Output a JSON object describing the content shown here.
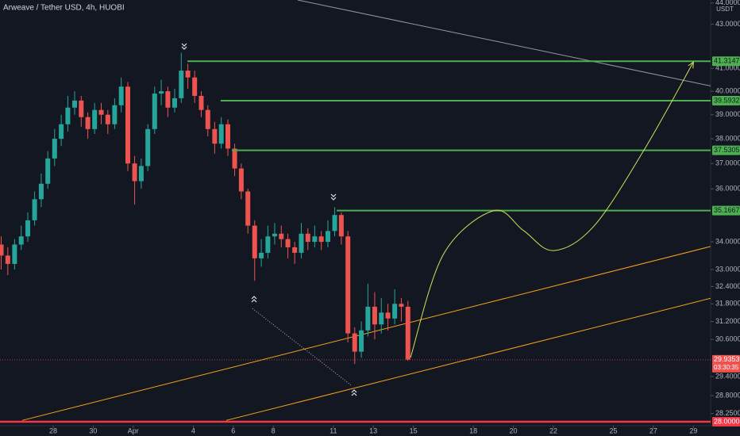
{
  "chart_data": {
    "type": "candlestick",
    "title": "Arweave / Tether USD, 4h, HUOBI",
    "y_axis_unit": "USDT",
    "log_scale": true,
    "grid": false,
    "colors": {
      "up": "#26a69a",
      "down": "#ef5350"
    },
    "x": [
      25.4,
      25.73,
      26.07,
      26.4,
      26.73,
      27.07,
      27.4,
      27.73,
      28.07,
      28.4,
      28.73,
      29.07,
      29.4,
      29.73,
      30.07,
      30.4,
      30.73,
      31.07,
      31.4,
      31.73,
      32.07,
      32.4,
      32.73,
      33.07,
      33.4,
      33.73,
      34.07,
      34.4,
      34.73,
      35.07,
      35.4,
      35.73,
      36.07,
      36.4,
      36.73,
      37.07,
      37.4,
      37.73,
      38.07,
      38.4,
      38.73,
      39.07,
      39.4,
      39.73,
      40.07,
      40.4,
      40.73,
      41.07,
      41.4,
      41.73,
      42.07,
      42.4,
      42.73,
      43.07,
      43.4,
      43.73,
      44.07,
      44.4,
      44.73,
      45.07,
      45.4,
      45.73
    ],
    "open": [
      33.9,
      33.5,
      33.2,
      33.9,
      34.2,
      34.8,
      35.6,
      36.2,
      37.2,
      38.0,
      38.6,
      39.3,
      39.6,
      38.9,
      38.4,
      39.2,
      39.0,
      38.6,
      39.4,
      40.2,
      37.0,
      36.3,
      36.9,
      38.4,
      39.9,
      40.0,
      39.3,
      39.7,
      40.9,
      40.6,
      39.8,
      39.2,
      38.4,
      37.8,
      38.6,
      37.6,
      36.8,
      35.9,
      34.6,
      33.4,
      33.6,
      34.2,
      34.3,
      34.1,
      33.8,
      33.6,
      34.3,
      34.0,
      34.2,
      34.0,
      34.4,
      35.0,
      34.2,
      30.8,
      30.2,
      30.9,
      31.7,
      31.1,
      31.5,
      31.3,
      31.8,
      31.7
    ],
    "high": [
      34.2,
      33.8,
      34.1,
      34.6,
      35.1,
      35.9,
      36.6,
      37.5,
      38.4,
      39.0,
      39.8,
      40.0,
      39.8,
      39.1,
      39.5,
      39.5,
      39.2,
      39.7,
      40.6,
      40.4,
      37.3,
      37.2,
      38.6,
      40.2,
      40.5,
      40.2,
      40.1,
      41.7,
      41.2,
      40.9,
      40.0,
      39.4,
      38.7,
      38.9,
      38.8,
      37.8,
      37.0,
      36.0,
      34.8,
      34.1,
      34.6,
      34.7,
      34.6,
      34.3,
      34.0,
      34.7,
      34.5,
      34.6,
      34.4,
      34.8,
      35.3,
      35.1,
      34.4,
      31.0,
      31.2,
      32.5,
      32.2,
      32.0,
      31.8,
      32.3,
      32.0,
      31.9
    ],
    "low": [
      33.0,
      32.8,
      33.0,
      33.7,
      34.0,
      34.6,
      35.3,
      36.0,
      36.9,
      37.7,
      38.3,
      39.0,
      38.5,
      38.0,
      38.2,
      38.6,
      38.2,
      38.4,
      39.1,
      36.7,
      35.4,
      36.0,
      36.7,
      38.2,
      39.4,
      38.9,
      39.1,
      39.5,
      40.1,
      39.5,
      38.9,
      38.1,
      37.4,
      37.6,
      37.3,
      36.5,
      35.6,
      34.3,
      32.6,
      33.1,
      33.4,
      33.9,
      33.8,
      33.4,
      33.2,
      33.4,
      33.7,
      33.8,
      33.7,
      33.8,
      34.2,
      33.9,
      30.5,
      29.8,
      30.0,
      30.7,
      30.6,
      30.8,
      30.9,
      31.1,
      31.2,
      29.9
    ],
    "close": [
      33.5,
      33.2,
      33.9,
      34.2,
      34.8,
      35.6,
      36.2,
      37.2,
      38.0,
      38.6,
      39.3,
      39.6,
      38.9,
      38.4,
      39.2,
      39.0,
      38.6,
      39.4,
      40.2,
      37.0,
      36.3,
      36.9,
      38.4,
      39.9,
      40.0,
      39.3,
      39.7,
      40.9,
      40.6,
      39.8,
      39.2,
      38.4,
      37.8,
      38.6,
      37.6,
      36.8,
      35.9,
      34.6,
      33.4,
      33.6,
      34.2,
      34.3,
      34.1,
      33.8,
      33.6,
      34.3,
      34.0,
      34.2,
      34.0,
      34.4,
      35.0,
      34.2,
      30.8,
      30.2,
      30.9,
      31.7,
      31.1,
      31.5,
      31.3,
      31.8,
      31.7,
      29.94
    ],
    "xlim": [
      25.34,
      60.86
    ],
    "xticks": [
      {
        "value": 28,
        "label": "28"
      },
      {
        "value": 30,
        "label": "30"
      },
      {
        "value": 32,
        "label": "Apr"
      },
      {
        "value": 35,
        "label": "4"
      },
      {
        "value": 37,
        "label": "6"
      },
      {
        "value": 39,
        "label": "8"
      },
      {
        "value": 42,
        "label": "11"
      },
      {
        "value": 44,
        "label": "13"
      },
      {
        "value": 46,
        "label": "15"
      },
      {
        "value": 49,
        "label": "18"
      },
      {
        "value": 51,
        "label": "20"
      },
      {
        "value": 53,
        "label": "22"
      },
      {
        "value": 56,
        "label": "25"
      },
      {
        "value": 58,
        "label": "27"
      },
      {
        "value": 60,
        "label": "29"
      }
    ],
    "ylim": [
      27.88,
      44.14
    ],
    "yticks": [
      {
        "value": 44,
        "label": "44.0000"
      },
      {
        "value": 43,
        "label": "43.0000"
      },
      {
        "value": 41,
        "label": "41.0000"
      },
      {
        "value": 40,
        "label": "40.0000"
      },
      {
        "value": 39,
        "label": "39.0000"
      },
      {
        "value": 38,
        "label": "38.0000"
      },
      {
        "value": 37,
        "label": "37.0000"
      },
      {
        "value": 36,
        "label": "36.0000"
      },
      {
        "value": 34,
        "label": "34.0000"
      },
      {
        "value": 33,
        "label": "33.0000"
      },
      {
        "value": 32.4,
        "label": "32.4000"
      },
      {
        "value": 31.8,
        "label": "31.8000"
      },
      {
        "value": 31.2,
        "label": "31.2000"
      },
      {
        "value": 30.6,
        "label": "30.6000"
      },
      {
        "value": 29.4,
        "label": "29.4000"
      },
      {
        "value": 28.8,
        "label": "28.8000"
      },
      {
        "value": 28.25,
        "label": "28.2500"
      }
    ],
    "levels": [
      {
        "value": 41.3147,
        "x": 34.71,
        "color": "#4caf50"
      },
      {
        "value": 39.5932,
        "x": 36.37,
        "color": "#4caf50"
      },
      {
        "value": 37.5305,
        "x": 36.93,
        "color": "#4caf50"
      },
      {
        "value": 35.1667,
        "x": 42.17,
        "color": "#4caf50"
      }
    ],
    "support": {
      "value": 28,
      "label": "28.0000",
      "color": "#f23645"
    },
    "current_price": {
      "value": 29.9353,
      "countdown": "03:30:35",
      "color": "#ef5350"
    },
    "trendlines": [
      {
        "color": "#f7a21b",
        "points": [
          [
            26.45,
            28.04
          ],
          [
            60.86,
            33.83
          ]
        ]
      },
      {
        "color": "#f7a21b",
        "points": [
          [
            36.65,
            28.04
          ],
          [
            60.86,
            31.99
          ]
        ]
      },
      {
        "color": "#9598a1",
        "points": [
          [
            40.22,
            44.14
          ],
          [
            60.86,
            40.23
          ]
        ]
      }
    ],
    "arrow": {
      "color": "#b2b5be",
      "points": [
        [
          37.96,
          31.64
        ],
        [
          42.92,
          29.11
        ]
      ]
    },
    "projection": {
      "color": "#d4e157",
      "points": [
        [
          45.86,
          30.01
        ],
        [
          47.5,
          33.54
        ],
        [
          50.0,
          35.16
        ],
        [
          51.5,
          34.42
        ],
        [
          53.0,
          33.68
        ],
        [
          55.0,
          34.56
        ],
        [
          57.5,
          37.5
        ],
        [
          60.0,
          41.28
        ]
      ]
    }
  }
}
